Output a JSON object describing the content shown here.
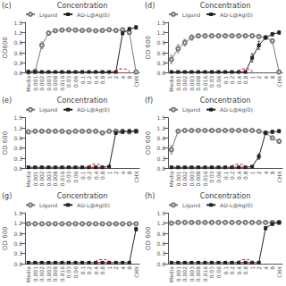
{
  "chart_data": [
    {
      "type": "line",
      "title": "Concentration",
      "ylabel": "OD600",
      "annotations": [
        {
          "text": "(c)"
        },
        {
          "shape": "ellipse",
          "x": "4",
          "y": 0.05,
          "width": 2.0,
          "height": 0.15,
          "color": "red",
          "line_style": "dashed"
        }
      ],
      "categories": [
        "Media",
        "0.001",
        "0.002",
        "0.003",
        "0.008",
        "0.016",
        "0.03",
        "0.06",
        "0.1",
        "0.2",
        "0.4",
        "0.8",
        "1",
        "2",
        "4",
        "8",
        "CHX"
      ],
      "series": [
        {
          "name": "Ligand",
          "color": "#777777",
          "marker": "circle",
          "values": [
            0.03,
            0.05,
            0.82,
            1.18,
            1.25,
            1.27,
            1.28,
            1.27,
            1.26,
            1.27,
            1.25,
            1.26,
            1.28,
            1.26,
            1.28,
            1.2,
            0.03
          ],
          "errors": [
            0.01,
            0.01,
            0.1,
            0.06,
            0.02,
            0.02,
            0.02,
            0.02,
            0.02,
            0.02,
            0.02,
            0.02,
            0.02,
            0.02,
            0.02,
            0.05,
            0.01
          ]
        },
        {
          "name": "AD-L@Ag(0)",
          "color": "#222222",
          "marker": "square",
          "values": [
            0.03,
            0.03,
            0.03,
            0.03,
            0.03,
            0.03,
            0.03,
            0.03,
            0.03,
            0.03,
            0.03,
            0.03,
            0.03,
            0.03,
            1.18,
            1.3,
            1.35
          ],
          "errors": [
            0.01,
            0.01,
            0.01,
            0.01,
            0.01,
            0.01,
            0.01,
            0.01,
            0.01,
            0.01,
            0.01,
            0.01,
            0.01,
            0.01,
            0.05,
            0.05,
            0.05
          ]
        }
      ],
      "ylim": [
        0,
        1.5
      ],
      "yticks": [
        {
          "value": 0,
          "label": "0.0"
        },
        0.3,
        0.6,
        0.9,
        1.2,
        1.5
      ],
      "grid": false,
      "legend": "upper left"
    },
    {
      "type": "line",
      "title": "Concentration",
      "ylabel": "OD 600",
      "annotations": [
        {
          "text": "(d)"
        },
        {
          "shape": "ellipse",
          "x": "0.8",
          "y": 0.05,
          "width": 2.0,
          "height": 0.15,
          "color": "red",
          "line_style": "dashed"
        }
      ],
      "categories": [
        "Media",
        "0.001",
        "0.002",
        "0.003",
        "0.008",
        "0.016",
        "0.03",
        "0.06",
        "0.1",
        "0.2",
        "0.4",
        "0.8",
        "1",
        "2",
        "4",
        "8",
        "CHX"
      ],
      "series": [
        {
          "name": "Ligand",
          "color": "#777777",
          "marker": "circle",
          "values": [
            0.4,
            0.72,
            0.9,
            1.05,
            1.1,
            1.1,
            1.1,
            1.1,
            1.1,
            1.1,
            1.1,
            1.1,
            1.1,
            1.08,
            1.05,
            0.95,
            0.03
          ],
          "errors": [
            0.12,
            0.12,
            0.1,
            0.08,
            0.03,
            0.02,
            0.02,
            0.02,
            0.02,
            0.02,
            0.02,
            0.02,
            0.02,
            0.02,
            0.02,
            0.05,
            0.01
          ]
        },
        {
          "name": "AD-L@Ag(0)",
          "color": "#222222",
          "marker": "square",
          "values": [
            0.03,
            0.03,
            0.03,
            0.03,
            0.03,
            0.03,
            0.03,
            0.03,
            0.03,
            0.03,
            0.03,
            0.03,
            0.45,
            0.82,
            1.05,
            1.15,
            1.2
          ],
          "errors": [
            0.01,
            0.01,
            0.01,
            0.01,
            0.01,
            0.01,
            0.01,
            0.01,
            0.01,
            0.01,
            0.01,
            0.01,
            0.12,
            0.12,
            0.05,
            0.05,
            0.05
          ]
        }
      ],
      "ylim": [
        0,
        1.5
      ],
      "yticks": [
        {
          "value": 0,
          "label": "0.0"
        },
        0.3,
        0.6,
        0.9,
        1.2,
        1.5
      ],
      "grid": false,
      "legend": "upper left"
    },
    {
      "type": "line",
      "title": "Concentration",
      "ylabel": "OD 600",
      "annotations": [
        {
          "text": "(e)"
        },
        {
          "shape": "ellipse",
          "x": "0.4",
          "y": 0.05,
          "width": 2.0,
          "height": 0.15,
          "color": "red",
          "line_style": "dashed"
        }
      ],
      "categories": [
        "Media",
        "0.001",
        "0.002",
        "0.003",
        "0.008",
        "0.016",
        "0.03",
        "0.06",
        "0.1",
        "0.2",
        "0.4",
        "0.8",
        "1",
        "2",
        "4",
        "8",
        "CHX"
      ],
      "series": [
        {
          "name": "Ligand",
          "color": "#777777",
          "marker": "circle",
          "values": [
            1.08,
            1.1,
            1.1,
            1.1,
            1.1,
            1.1,
            1.08,
            1.1,
            1.1,
            1.1,
            1.1,
            1.05,
            1.1,
            1.1,
            1.1,
            1.08,
            1.1
          ],
          "errors": [
            0.02,
            0.02,
            0.02,
            0.02,
            0.02,
            0.02,
            0.02,
            0.02,
            0.02,
            0.02,
            0.02,
            0.02,
            0.02,
            0.02,
            0.02,
            0.02,
            0.02
          ]
        },
        {
          "name": "AD-L@Ag(0)",
          "color": "#222222",
          "marker": "square",
          "values": [
            0.03,
            0.03,
            0.03,
            0.03,
            0.03,
            0.03,
            0.03,
            0.03,
            0.03,
            0.03,
            0.03,
            0.03,
            0.05,
            1.05,
            1.08,
            1.1,
            1.1
          ],
          "errors": [
            0.01,
            0.01,
            0.01,
            0.01,
            0.01,
            0.01,
            0.01,
            0.01,
            0.01,
            0.01,
            0.01,
            0.01,
            0.02,
            0.05,
            0.05,
            0.05,
            0.05
          ]
        }
      ],
      "ylim": [
        0,
        1.5
      ],
      "yticks": [
        {
          "value": 0,
          "label": "0.0"
        },
        0.3,
        0.6,
        0.9,
        1.2,
        1.5
      ],
      "grid": false,
      "legend": "upper left"
    },
    {
      "type": "line",
      "title": "Concentration",
      "ylabel": "OD 600",
      "annotations": [
        {
          "text": "(f)"
        },
        {
          "shape": "ellipse",
          "x": "0.4",
          "y": 0.05,
          "width": 2.0,
          "height": 0.15,
          "color": "red",
          "line_style": "dashed"
        }
      ],
      "categories": [
        "Media",
        "0.001",
        "0.002",
        "0.003",
        "0.008",
        "0.016",
        "0.03",
        "0.06",
        "0.1",
        "0.2",
        "0.4",
        "0.8",
        "1",
        "2",
        "4",
        "8",
        "CHX"
      ],
      "series": [
        {
          "name": "Ligand",
          "color": "#777777",
          "marker": "circle",
          "values": [
            0.55,
            1.1,
            1.12,
            1.12,
            1.12,
            1.12,
            1.12,
            1.12,
            1.12,
            1.12,
            1.12,
            1.12,
            1.12,
            1.1,
            1.05,
            0.9,
            0.8
          ],
          "errors": [
            0.12,
            0.02,
            0.02,
            0.02,
            0.02,
            0.02,
            0.02,
            0.02,
            0.02,
            0.02,
            0.02,
            0.02,
            0.02,
            0.02,
            0.05,
            0.05,
            0.05
          ]
        },
        {
          "name": "AD-L@Ag(0)",
          "color": "#222222",
          "marker": "square",
          "values": [
            0.03,
            0.03,
            0.03,
            0.03,
            0.03,
            0.03,
            0.03,
            0.03,
            0.03,
            0.03,
            0.03,
            0.03,
            0.05,
            0.35,
            1.05,
            1.08,
            1.1
          ],
          "errors": [
            0.01,
            0.01,
            0.01,
            0.01,
            0.01,
            0.01,
            0.01,
            0.01,
            0.01,
            0.01,
            0.01,
            0.01,
            0.02,
            0.08,
            0.05,
            0.05,
            0.05
          ]
        }
      ],
      "ylim": [
        0,
        1.5
      ],
      "yticks": [
        {
          "value": 0,
          "label": "0.0"
        },
        0.3,
        0.6,
        0.9,
        1.2,
        1.5
      ],
      "grid": false,
      "legend": "upper left"
    },
    {
      "type": "line",
      "title": "Concentration",
      "ylabel": "OD 600",
      "annotations": [
        {
          "text": "(g)"
        },
        {
          "shape": "ellipse",
          "x": "0.8",
          "y": 0.05,
          "width": 2.0,
          "height": 0.15,
          "color": "red",
          "line_style": "dashed"
        }
      ],
      "categories": [
        "Media",
        "0.001",
        "0.002",
        "0.003",
        "0.008",
        "0.016",
        "0.03",
        "0.06",
        "0.1",
        "0.2",
        "0.4",
        "0.8",
        "1",
        "2",
        "4",
        "8",
        "CHX"
      ],
      "series": [
        {
          "name": "Ligand",
          "color": "#777777",
          "marker": "circle",
          "values": [
            1.18,
            1.18,
            1.18,
            1.18,
            1.18,
            1.18,
            1.18,
            1.18,
            1.18,
            1.18,
            1.18,
            1.18,
            1.18,
            1.18,
            1.18,
            1.18,
            1.18
          ],
          "errors": [
            0.02,
            0.02,
            0.02,
            0.02,
            0.02,
            0.02,
            0.02,
            0.02,
            0.02,
            0.02,
            0.02,
            0.02,
            0.02,
            0.02,
            0.02,
            0.02,
            0.02
          ]
        },
        {
          "name": "AD-L@Ag(0)",
          "color": "#222222",
          "marker": "square",
          "values": [
            0.03,
            0.03,
            0.03,
            0.03,
            0.03,
            0.03,
            0.03,
            0.03,
            0.03,
            0.03,
            0.03,
            0.03,
            0.03,
            0.03,
            0.03,
            0.03,
            1.02
          ],
          "errors": [
            0.01,
            0.01,
            0.01,
            0.01,
            0.01,
            0.01,
            0.01,
            0.01,
            0.01,
            0.01,
            0.01,
            0.01,
            0.01,
            0.01,
            0.01,
            0.01,
            0.05
          ]
        }
      ],
      "ylim": [
        0,
        1.5
      ],
      "yticks": [
        {
          "value": 0,
          "label": "0.0"
        },
        0.3,
        0.6,
        0.9,
        1.2,
        1.5
      ],
      "grid": false,
      "legend": "upper left"
    },
    {
      "type": "line",
      "title": "Concentration",
      "ylabel": "OD 600",
      "annotations": [
        {
          "text": "(h)"
        },
        {
          "shape": "ellipse",
          "x": "0.8",
          "y": 0.05,
          "width": 2.0,
          "height": 0.15,
          "color": "red",
          "line_style": "dashed"
        }
      ],
      "categories": [
        "Media",
        "0.001",
        "0.002",
        "0.003",
        "0.008",
        "0.016",
        "0.03",
        "0.06",
        "0.1",
        "0.2",
        "0.4",
        "0.8",
        "1",
        "2",
        "4",
        "8",
        "CHX"
      ],
      "series": [
        {
          "name": "Ligand",
          "color": "#777777",
          "marker": "circle",
          "values": [
            1.2,
            1.22,
            1.22,
            1.22,
            1.22,
            1.22,
            1.22,
            1.22,
            1.22,
            1.22,
            1.22,
            1.22,
            1.22,
            1.22,
            1.22,
            1.22,
            1.22
          ],
          "errors": [
            0.02,
            0.02,
            0.02,
            0.02,
            0.02,
            0.02,
            0.02,
            0.02,
            0.02,
            0.02,
            0.02,
            0.02,
            0.02,
            0.02,
            0.02,
            0.02,
            0.02
          ]
        },
        {
          "name": "AD-L@Ag(0)",
          "color": "#222222",
          "marker": "square",
          "values": [
            0.03,
            0.03,
            0.03,
            0.03,
            0.03,
            0.03,
            0.03,
            0.03,
            0.03,
            0.03,
            0.03,
            0.03,
            0.03,
            0.03,
            1.05,
            1.18,
            1.22
          ],
          "errors": [
            0.01,
            0.01,
            0.01,
            0.01,
            0.01,
            0.01,
            0.01,
            0.01,
            0.01,
            0.01,
            0.01,
            0.01,
            0.01,
            0.01,
            0.05,
            0.05,
            0.05
          ]
        }
      ],
      "ylim": [
        0,
        1.5
      ],
      "yticks": [
        {
          "value": 0,
          "label": "0.0"
        },
        0.3,
        0.6,
        0.9,
        1.2,
        1.5
      ],
      "grid": false,
      "legend": "upper left"
    }
  ]
}
